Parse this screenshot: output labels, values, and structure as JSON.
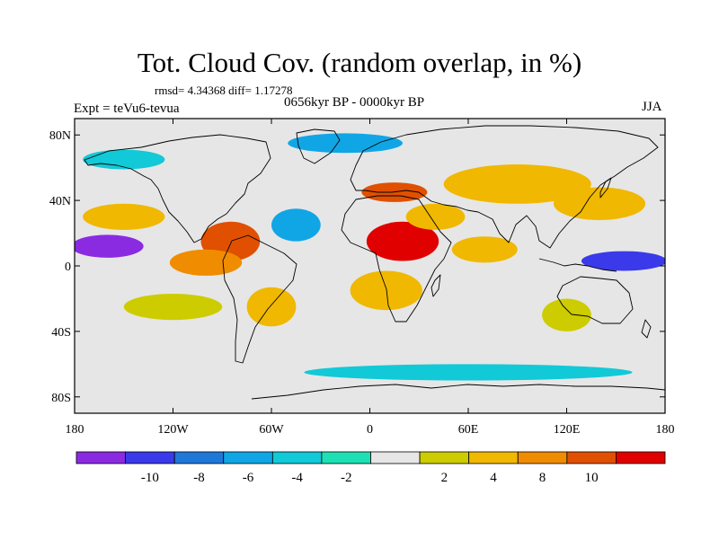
{
  "title": "Tot. Cloud Cov. (random overlap, in %)",
  "stats": "rmsd= 4.34368 diff= 1.17278",
  "experiment": "Expt = teVu6-tevua",
  "period": "0656kyr BP - 0000kyr BP",
  "season": "JJA",
  "map": {
    "lat_ticks": [
      {
        "value": 80,
        "label": "80N"
      },
      {
        "value": 40,
        "label": "40N"
      },
      {
        "value": 0,
        "label": "0"
      },
      {
        "value": -40,
        "label": "40S"
      },
      {
        "value": -80,
        "label": "80S"
      }
    ],
    "lon_ticks": [
      {
        "value": -180,
        "label": "180"
      },
      {
        "value": -120,
        "label": "120W"
      },
      {
        "value": -60,
        "label": "60W"
      },
      {
        "value": 0,
        "label": "0"
      },
      {
        "value": 60,
        "label": "60E"
      },
      {
        "value": 120,
        "label": "120E"
      },
      {
        "value": 180,
        "label": "180"
      }
    ],
    "lon_range": [
      -180,
      180
    ],
    "lat_range": [
      -90,
      90
    ],
    "background_color": "#e6e6e6",
    "anomaly_regions": [
      {
        "lon": -160,
        "lat": 12,
        "rx": 22,
        "ry": 7,
        "level": -10
      },
      {
        "lon": 155,
        "lat": 3,
        "rx": 26,
        "ry": 6,
        "level": -9
      },
      {
        "lon": 20,
        "lat": 15,
        "rx": 22,
        "ry": 12,
        "level": 10
      },
      {
        "lon": 15,
        "lat": 45,
        "rx": 20,
        "ry": 6,
        "level": 9
      },
      {
        "lon": -85,
        "lat": 15,
        "rx": 18,
        "ry": 12,
        "level": 8
      },
      {
        "lon": -100,
        "lat": 2,
        "rx": 22,
        "ry": 8,
        "level": 7
      },
      {
        "lon": 90,
        "lat": 50,
        "rx": 45,
        "ry": 12,
        "level": 5
      },
      {
        "lon": 140,
        "lat": 38,
        "rx": 28,
        "ry": 10,
        "level": 5
      },
      {
        "lon": -45,
        "lat": 25,
        "rx": 15,
        "ry": 10,
        "level": -5
      },
      {
        "lon": 10,
        "lat": -15,
        "rx": 22,
        "ry": 12,
        "level": 4
      },
      {
        "lon": -150,
        "lat": 30,
        "rx": 25,
        "ry": 8,
        "level": 5
      },
      {
        "lon": 70,
        "lat": 10,
        "rx": 20,
        "ry": 8,
        "level": 4
      },
      {
        "lon": -60,
        "lat": -25,
        "rx": 15,
        "ry": 12,
        "level": 4
      },
      {
        "lon": -120,
        "lat": -25,
        "rx": 30,
        "ry": 8,
        "level": 3
      },
      {
        "lon": -15,
        "lat": 75,
        "rx": 35,
        "ry": 6,
        "level": -4
      },
      {
        "lon": 60,
        "lat": -65,
        "rx": 100,
        "ry": 5,
        "level": -3
      },
      {
        "lon": -150,
        "lat": 65,
        "rx": 25,
        "ry": 6,
        "level": -3
      },
      {
        "lon": 40,
        "lat": 30,
        "rx": 18,
        "ry": 8,
        "level": 5
      },
      {
        "lon": 120,
        "lat": -30,
        "rx": 15,
        "ry": 10,
        "level": 3
      }
    ]
  },
  "colorbar": {
    "colors": [
      "#8a2be2",
      "#3a3aea",
      "#1f78d8",
      "#10a6e6",
      "#12c9d8",
      "#1fe0b4",
      "#e6e6e6",
      "#cccc00",
      "#f0b800",
      "#f08c00",
      "#e05000",
      "#e00000"
    ],
    "labels": [
      "-10",
      "-8",
      "-6",
      "-4",
      "-2",
      "2",
      "4",
      "8",
      "10"
    ]
  }
}
